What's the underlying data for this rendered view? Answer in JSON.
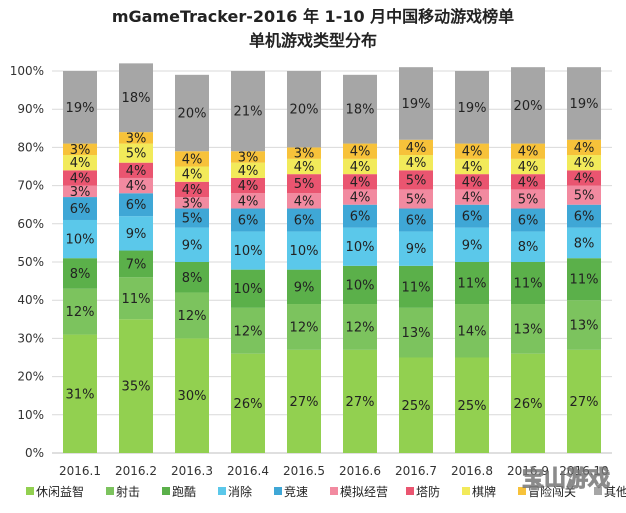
{
  "chart_data": {
    "type": "stacked-bar-100",
    "title": "mGameTracker-2016 年 1-10 月中国移动游戏榜单",
    "subtitle": "单机游戏类型分布",
    "categories": [
      "2016.1",
      "2016.2",
      "2016.3",
      "2016.4",
      "2016.5",
      "2016.6",
      "2016.7",
      "2016.8",
      "2016.9",
      "2016.10"
    ],
    "ylim": [
      0,
      100
    ],
    "yticks": [
      0,
      10,
      20,
      30,
      40,
      50,
      60,
      70,
      80,
      90,
      100
    ],
    "ytick_suffix": "%",
    "legend_position": "bottom",
    "series": [
      {
        "name": "休闲益智",
        "color": "#92d050",
        "values": [
          31,
          35,
          30,
          26,
          27,
          27,
          25,
          25,
          26,
          27
        ]
      },
      {
        "name": "射击",
        "color": "#7cc35e",
        "values": [
          12,
          11,
          12,
          12,
          12,
          12,
          13,
          14,
          13,
          13
        ]
      },
      {
        "name": "跑酷",
        "color": "#5bb04a",
        "values": [
          8,
          7,
          8,
          10,
          9,
          10,
          11,
          11,
          11,
          11
        ]
      },
      {
        "name": "消除",
        "color": "#5bc8ea",
        "values": [
          10,
          9,
          9,
          10,
          10,
          10,
          9,
          9,
          8,
          8
        ]
      },
      {
        "name": "竞速",
        "color": "#3fa7d6",
        "values": [
          6,
          6,
          5,
          6,
          6,
          6,
          6,
          6,
          6,
          6
        ]
      },
      {
        "name": "模拟经营",
        "color": "#f28aa0",
        "values": [
          3,
          4,
          3,
          4,
          4,
          4,
          5,
          4,
          5,
          5
        ]
      },
      {
        "name": "塔防",
        "color": "#ea5570",
        "values": [
          4,
          4,
          4,
          4,
          5,
          4,
          5,
          4,
          4,
          4
        ]
      },
      {
        "name": "棋牌",
        "color": "#f2ea5a",
        "values": [
          4,
          5,
          4,
          4,
          4,
          4,
          4,
          4,
          4,
          4
        ]
      },
      {
        "name": "冒险闯关",
        "color": "#f7c23a",
        "values": [
          3,
          3,
          4,
          3,
          3,
          4,
          4,
          4,
          4,
          4
        ]
      },
      {
        "name": "其他",
        "color": "#a6a6a6",
        "values": [
          19,
          18,
          20,
          21,
          20,
          18,
          19,
          19,
          20,
          19
        ]
      }
    ],
    "watermark": "宝山游戏"
  }
}
